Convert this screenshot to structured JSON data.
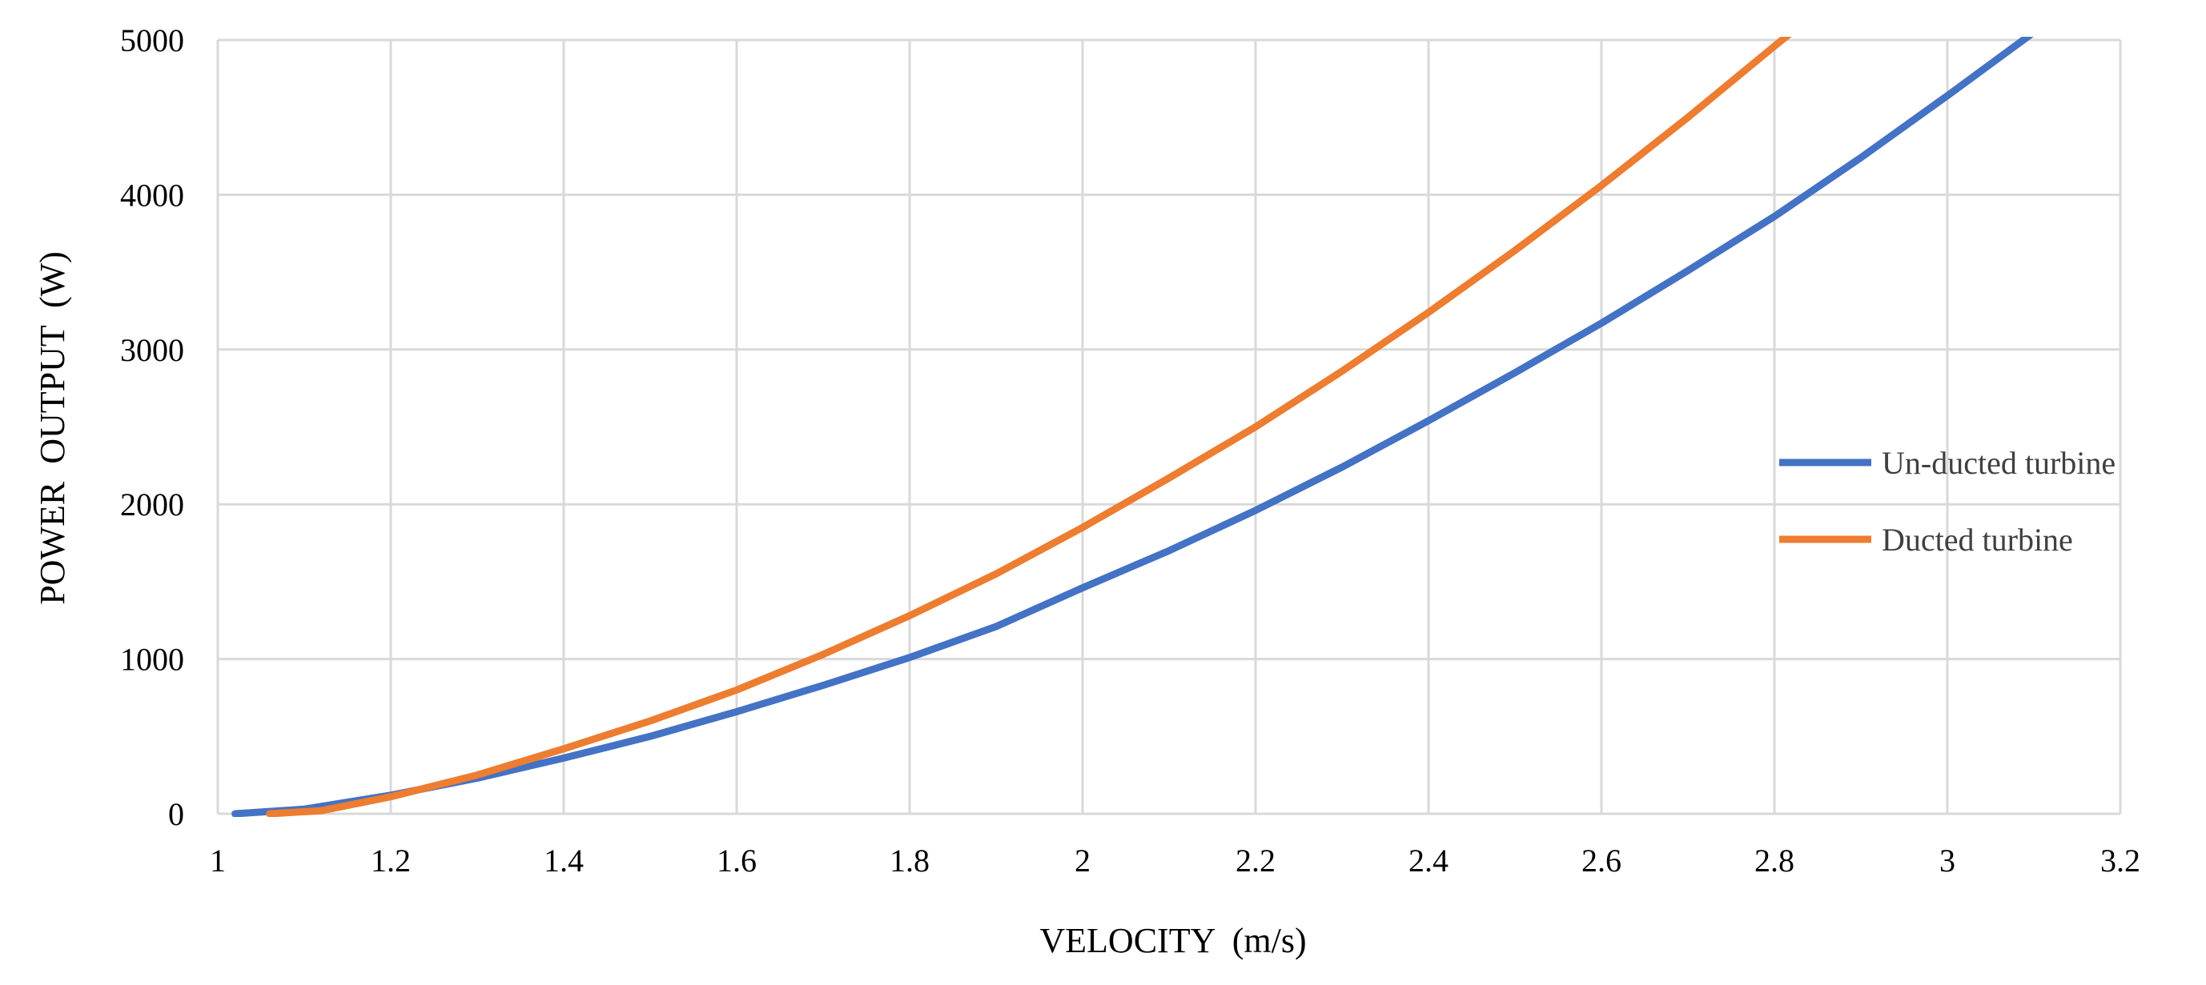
{
  "chart_data": {
    "type": "line",
    "title": "",
    "xlabel": "VELOCITY  (m/s)",
    "ylabel": "POWER  OUTPUT  (W)",
    "xlim": [
      1,
      3.2
    ],
    "ylim": [
      0,
      5000
    ],
    "x_ticks": [
      1,
      1.2,
      1.4,
      1.6,
      1.8,
      2,
      2.2,
      2.4,
      2.6,
      2.8,
      3,
      3.2
    ],
    "x_tick_labels": [
      "1",
      "1.2",
      "1.4",
      "1.6",
      "1.8",
      "2",
      "2.2",
      "2.4",
      "2.6",
      "2.8",
      "3",
      "3.2"
    ],
    "y_ticks": [
      0,
      1000,
      2000,
      3000,
      4000,
      5000
    ],
    "y_tick_labels": [
      "0",
      "1000",
      "2000",
      "3000",
      "4000",
      "5000"
    ],
    "grid": true,
    "legend_position": "right",
    "series": [
      {
        "name": "Un-ducted turbine",
        "color": "#4472c4",
        "x": [
          1.02,
          1.1,
          1.2,
          1.3,
          1.4,
          1.5,
          1.6,
          1.7,
          1.8,
          1.9,
          2.0,
          2.1,
          2.2,
          2.3,
          2.4,
          2.5,
          2.6,
          2.7,
          2.8,
          2.9,
          3.0,
          3.1
        ],
        "y": [
          0,
          30,
          120,
          230,
          360,
          500,
          660,
          830,
          1010,
          1210,
          1460,
          1700,
          1960,
          2240,
          2540,
          2850,
          3170,
          3510,
          3860,
          4240,
          4640,
          5050
        ]
      },
      {
        "name": "Ducted turbine",
        "color": "#ed7d31",
        "x": [
          1.06,
          1.12,
          1.2,
          1.3,
          1.4,
          1.5,
          1.6,
          1.7,
          1.8,
          1.9,
          2.0,
          2.1,
          2.2,
          2.3,
          2.4,
          2.5,
          2.6,
          2.7,
          2.8,
          2.82
        ],
        "y": [
          0,
          20,
          110,
          250,
          420,
          600,
          800,
          1030,
          1280,
          1550,
          1850,
          2170,
          2500,
          2860,
          3240,
          3640,
          4060,
          4500,
          4960,
          5050
        ]
      }
    ]
  }
}
